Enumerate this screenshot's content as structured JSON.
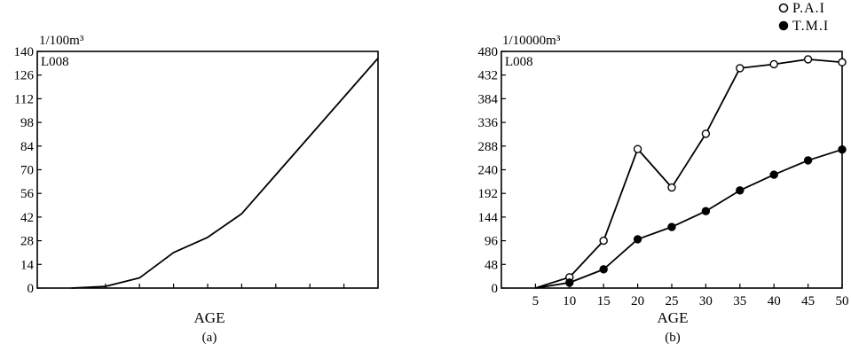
{
  "chart_data": [
    {
      "id": "a",
      "type": "line",
      "code_label": "L008",
      "unit_label": "1/100m³",
      "xlabel": "AGE",
      "caption": "(a)",
      "yticks": [
        "0",
        "14",
        "28",
        "42",
        "56",
        "70",
        "84",
        "98",
        "112",
        "126",
        "140"
      ],
      "ylim": [
        0,
        140
      ],
      "xlim": [
        0,
        50
      ],
      "x_minor_ticks": [
        10,
        15,
        20,
        25,
        30,
        35,
        40,
        45
      ],
      "x": [
        5,
        10,
        15,
        20,
        25,
        30,
        35,
        40,
        45,
        50
      ],
      "series": [
        {
          "values": [
            0,
            1,
            6,
            21,
            30,
            44,
            67,
            90,
            113,
            136
          ]
        }
      ]
    },
    {
      "id": "b",
      "type": "line",
      "code_label": "L008",
      "unit_label": "1/10000m³",
      "xlabel": "AGE",
      "caption": "(b)",
      "yticks": [
        "0",
        "48",
        "96",
        "144",
        "192",
        "240",
        "288",
        "336",
        "384",
        "432",
        "480"
      ],
      "ylim": [
        0,
        480
      ],
      "xlim": [
        0,
        50
      ],
      "xticks": [
        "5",
        "10",
        "15",
        "20",
        "25",
        "30",
        "35",
        "40",
        "45",
        "50"
      ],
      "legend_position": "top-right",
      "x": [
        5,
        10,
        15,
        20,
        25,
        30,
        35,
        40,
        45,
        50
      ],
      "series": [
        {
          "name": "P.A.I",
          "marker": "open-circle",
          "values": [
            0,
            22,
            96,
            282,
            204,
            313,
            446,
            454,
            464,
            458
          ]
        },
        {
          "name": "T.M.I",
          "marker": "filled-circle",
          "values": [
            0,
            11,
            38,
            99,
            124,
            156,
            198,
            230,
            259,
            281
          ]
        }
      ]
    }
  ]
}
